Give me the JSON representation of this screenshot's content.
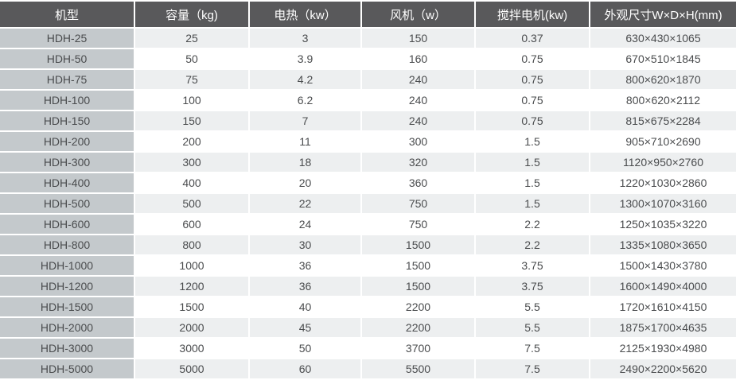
{
  "chart_data": {
    "type": "table",
    "columns": [
      "机型",
      "容量（kg)",
      "电热（kw）",
      "风机（w）",
      "搅拌电机(kw)",
      "外观尺寸W×D×H(mm)"
    ],
    "rows": [
      [
        "HDH-25",
        "25",
        "3",
        "150",
        "0.37",
        "630×430×1065"
      ],
      [
        "HDH-50",
        "50",
        "3.9",
        "160",
        "0.75",
        "670×510×1845"
      ],
      [
        "HDH-75",
        "75",
        "4.2",
        "240",
        "0.75",
        "800×620×1870"
      ],
      [
        "HDH-100",
        "100",
        "6.2",
        "240",
        "0.75",
        "800×620×2112"
      ],
      [
        "HDH-150",
        "150",
        "7",
        "240",
        "0.75",
        "815×675×2284"
      ],
      [
        "HDH-200",
        "200",
        "11",
        "300",
        "1.5",
        "905×710×2690"
      ],
      [
        "HDH-300",
        "300",
        "18",
        "320",
        "1.5",
        "1120×950×2760"
      ],
      [
        "HDH-400",
        "400",
        "20",
        "360",
        "1.5",
        "1220×1030×2860"
      ],
      [
        "HDH-500",
        "500",
        "22",
        "750",
        "1.5",
        "1300×1070×3160"
      ],
      [
        "HDH-600",
        "600",
        "24",
        "750",
        "2.2",
        "1250×1035×3220"
      ],
      [
        "HDH-800",
        "800",
        "30",
        "1500",
        "2.2",
        "1335×1080×3650"
      ],
      [
        "HDH-1000",
        "1000",
        "36",
        "1500",
        "3.75",
        "1500×1430×3780"
      ],
      [
        "HDH-1200",
        "1200",
        "36",
        "1500",
        "3.75",
        "1600×1490×4000"
      ],
      [
        "HDH-1500",
        "1500",
        "40",
        "2200",
        "5.5",
        "1720×1610×4150"
      ],
      [
        "HDH-2000",
        "2000",
        "45",
        "2200",
        "5.5",
        "1875×1700×4635"
      ],
      [
        "HDH-3000",
        "3000",
        "50",
        "3700",
        "7.5",
        "2125×1930×4980"
      ],
      [
        "HDH-5000",
        "5000",
        "60",
        "5500",
        "7.5",
        "2490×2200×5620"
      ]
    ]
  },
  "colors": {
    "header_bg": "#59595b",
    "header_text": "#ffffff",
    "model_col_bg": "#c4c9cc",
    "stripe_row_bg": "#edeff0",
    "plain_row_bg": "#ffffff",
    "cell_text": "#4a4c4e",
    "separator": "#ffffff"
  }
}
